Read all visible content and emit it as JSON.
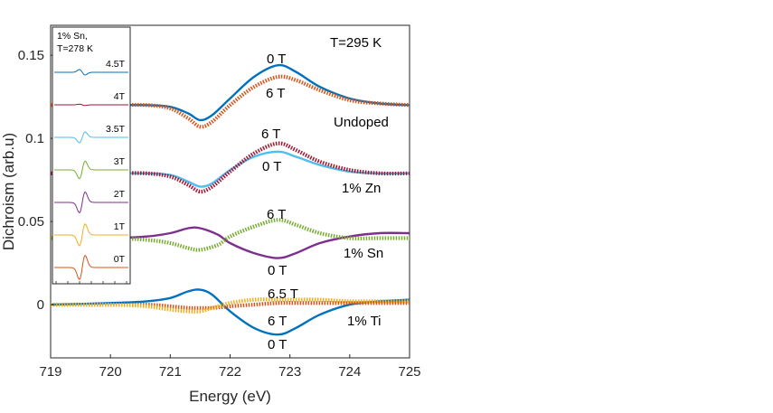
{
  "chart_data": {
    "type": "line",
    "title": "",
    "xlabel": "Energy (eV)",
    "ylabel": "Dichroism (arb.u)",
    "xlim": [
      719,
      725
    ],
    "ylim": [
      -0.032,
      0.168
    ],
    "xticks": [
      719,
      720,
      721,
      722,
      723,
      724,
      725
    ],
    "xtick_labels": [
      "719",
      "720",
      "721",
      "722",
      "723",
      "724",
      "725"
    ],
    "yticks": [
      0,
      0.05,
      0.1,
      0.15
    ],
    "ytick_labels": [
      "0",
      "0.05",
      "0.1",
      "0.15"
    ],
    "grid": false,
    "legend": "none",
    "colors": {
      "blue": "#0072bd",
      "orange": "#d95319",
      "lightblue": "#4dbeee",
      "darkred": "#a2142f",
      "purple": "#7e2f8e",
      "green": "#77ac30",
      "yellow": "#edb120"
    },
    "annotations": {
      "temperature": "T=295 K",
      "undoped_0T": "0 T",
      "undoped_6T": "6 T",
      "undoped": "Undoped",
      "zn_6T": "6 T",
      "zn_0T": "0 T",
      "zn": "1% Zn",
      "sn_6T": "6 T",
      "sn_0T": "0 T",
      "sn": "1% Sn",
      "ti_65T": "6.5 T",
      "ti_6T": "6 T",
      "ti_0T": "0 T",
      "ti": "1% Ti"
    },
    "series": [
      {
        "name": "Undoped 0 T",
        "group": "undoped",
        "color": "blue",
        "style": "line",
        "x": [
          719,
          720,
          720.6,
          721,
          721.3,
          721.5,
          721.7,
          722,
          722.4,
          722.8,
          723.1,
          723.5,
          724,
          724.5,
          725
        ],
        "y": [
          0.12,
          0.12,
          0.12,
          0.119,
          0.115,
          0.111,
          0.114,
          0.124,
          0.137,
          0.144,
          0.14,
          0.131,
          0.124,
          0.121,
          0.12
        ]
      },
      {
        "name": "Undoped 6 T",
        "group": "undoped",
        "color": "orange",
        "style": "markers",
        "x": [
          719,
          720,
          720.6,
          721,
          721.3,
          721.5,
          721.7,
          722,
          722.4,
          722.8,
          723.1,
          723.5,
          724,
          724.5,
          725
        ],
        "y": [
          0.12,
          0.12,
          0.12,
          0.118,
          0.112,
          0.107,
          0.11,
          0.12,
          0.131,
          0.137,
          0.135,
          0.129,
          0.123,
          0.121,
          0.12
        ]
      },
      {
        "name": "1% Zn 0 T",
        "group": "zn",
        "color": "lightblue",
        "style": "line",
        "x": [
          719,
          720,
          720.6,
          721,
          721.3,
          721.5,
          721.7,
          722,
          722.4,
          722.8,
          723.1,
          723.5,
          724,
          724.5,
          725
        ],
        "y": [
          0.079,
          0.079,
          0.079,
          0.078,
          0.074,
          0.071,
          0.073,
          0.081,
          0.089,
          0.092,
          0.089,
          0.084,
          0.08,
          0.079,
          0.079
        ]
      },
      {
        "name": "1% Zn 6 T",
        "group": "zn",
        "color": "darkred",
        "style": "markers",
        "x": [
          719,
          720,
          720.6,
          721,
          721.3,
          721.5,
          721.7,
          722,
          722.4,
          722.8,
          723.1,
          723.5,
          724,
          724.5,
          725
        ],
        "y": [
          0.079,
          0.079,
          0.079,
          0.077,
          0.072,
          0.068,
          0.071,
          0.08,
          0.091,
          0.097,
          0.093,
          0.086,
          0.081,
          0.079,
          0.079
        ]
      },
      {
        "name": "1% Sn 0 T",
        "group": "sn",
        "color": "purple",
        "style": "line",
        "x": [
          719,
          720,
          720.6,
          721,
          721.3,
          721.5,
          721.8,
          722,
          722.4,
          722.8,
          723.1,
          723.5,
          724,
          724.5,
          725
        ],
        "y": [
          0.04,
          0.04,
          0.041,
          0.043,
          0.046,
          0.046,
          0.042,
          0.037,
          0.031,
          0.028,
          0.031,
          0.037,
          0.041,
          0.043,
          0.043
        ]
      },
      {
        "name": "1% Sn 6 T",
        "group": "sn",
        "color": "green",
        "style": "markers",
        "x": [
          719,
          720,
          720.6,
          721,
          721.3,
          721.5,
          721.8,
          722,
          722.4,
          722.8,
          723.1,
          723.5,
          724,
          724.5,
          725
        ],
        "y": [
          0.04,
          0.04,
          0.039,
          0.037,
          0.034,
          0.033,
          0.036,
          0.041,
          0.047,
          0.051,
          0.048,
          0.043,
          0.04,
          0.04,
          0.04
        ]
      },
      {
        "name": "1% Ti 0 T",
        "group": "ti",
        "color": "blue",
        "style": "line",
        "x": [
          719,
          720,
          720.6,
          721,
          721.3,
          721.5,
          721.7,
          722,
          722.4,
          722.8,
          723.1,
          723.5,
          724,
          724.5,
          725
        ],
        "y": [
          0,
          0.001,
          0.002,
          0.004,
          0.008,
          0.009,
          0.006,
          -0.004,
          -0.014,
          -0.018,
          -0.014,
          -0.006,
          0.0,
          0.002,
          0.003
        ]
      },
      {
        "name": "1% Ti 6 T",
        "group": "ti",
        "color": "orange",
        "style": "markers",
        "x": [
          719,
          720,
          720.6,
          721,
          721.3,
          721.5,
          721.7,
          722,
          722.4,
          722.8,
          723.1,
          723.5,
          724,
          724.5,
          725
        ],
        "y": [
          0,
          0,
          0,
          -0.001,
          -0.002,
          -0.002,
          -0.002,
          -0.001,
          0.0,
          0.001,
          0.001,
          0.001,
          0.001,
          0.001,
          0.001
        ]
      },
      {
        "name": "1% Ti 6.5 T",
        "group": "ti",
        "color": "yellow",
        "style": "markers",
        "x": [
          719,
          720,
          720.6,
          721,
          721.3,
          721.5,
          721.7,
          722,
          722.4,
          722.8,
          723.1,
          723.5,
          724,
          724.5,
          725
        ],
        "y": [
          0,
          0,
          -0.001,
          -0.003,
          -0.004,
          -0.004,
          -0.002,
          0.001,
          0.003,
          0.003,
          0.003,
          0.003,
          0.002,
          0.002,
          0.002
        ]
      }
    ],
    "inset": {
      "title_line1": "1% Sn,",
      "title_line2": "T=278 K",
      "series": [
        {
          "label": "4.5T",
          "color": "blue",
          "amplitude": 0.5,
          "sign": 1
        },
        {
          "label": "4T",
          "color": "darkred",
          "amplitude": 0.12,
          "sign": 1
        },
        {
          "label": "3.5T",
          "color": "lightblue",
          "amplitude": 1.0,
          "sign": -1
        },
        {
          "label": "3T",
          "color": "green",
          "amplitude": 1.6,
          "sign": -1
        },
        {
          "label": "2T",
          "color": "purple",
          "amplitude": 1.9,
          "sign": -1
        },
        {
          "label": "1T",
          "color": "yellow",
          "amplitude": 2.0,
          "sign": -1
        },
        {
          "label": "0T",
          "color": "orange",
          "amplitude": 2.2,
          "sign": -1
        }
      ]
    }
  }
}
